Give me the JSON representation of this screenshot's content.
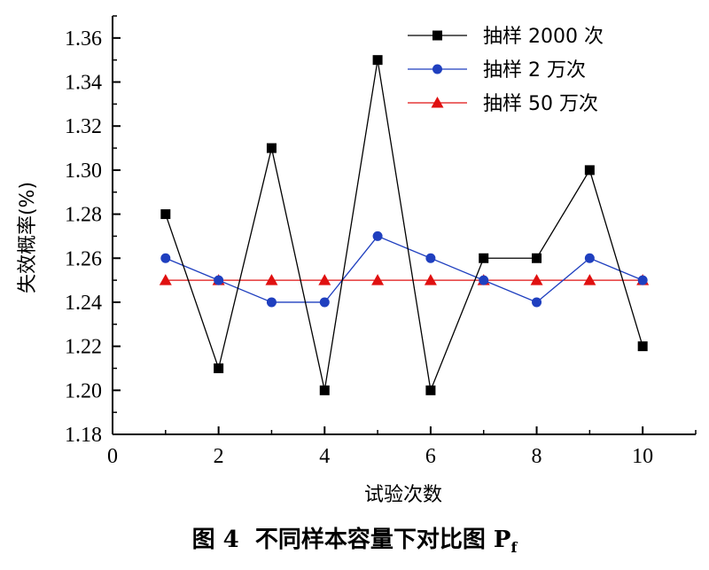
{
  "chart_data": {
    "type": "line",
    "xlabel": "试验次数",
    "ylabel": "失效概率(%)",
    "xlim": [
      0,
      11
    ],
    "ylim": [
      1.18,
      1.37
    ],
    "x_ticks": [
      "0",
      "2",
      "4",
      "6",
      "8",
      "10"
    ],
    "y_ticks": [
      "1.18",
      "1.20",
      "1.22",
      "1.24",
      "1.26",
      "1.28",
      "1.30",
      "1.32",
      "1.34",
      "1.36"
    ],
    "x": [
      1,
      2,
      3,
      4,
      5,
      6,
      7,
      8,
      9,
      10
    ],
    "series": [
      {
        "name": "抽样 2000 次",
        "color": "#000000",
        "marker": "square",
        "values": [
          1.28,
          1.21,
          1.31,
          1.2,
          1.35,
          1.2,
          1.26,
          1.26,
          1.3,
          1.22
        ]
      },
      {
        "name": "抽样 2 万次",
        "color": "#1f3fbf",
        "marker": "circle",
        "values": [
          1.26,
          1.25,
          1.24,
          1.24,
          1.27,
          1.26,
          1.25,
          1.24,
          1.26,
          1.25
        ]
      },
      {
        "name": "抽样 50 万次",
        "color": "#e01010",
        "marker": "triangle",
        "values": [
          1.25,
          1.25,
          1.25,
          1.25,
          1.25,
          1.25,
          1.25,
          1.25,
          1.25,
          1.25
        ]
      }
    ],
    "legend_position": "top-right",
    "grid": false
  },
  "caption": {
    "prefix": "图 4",
    "text": "不同样本容量下对比图 P",
    "subscript": "f"
  }
}
